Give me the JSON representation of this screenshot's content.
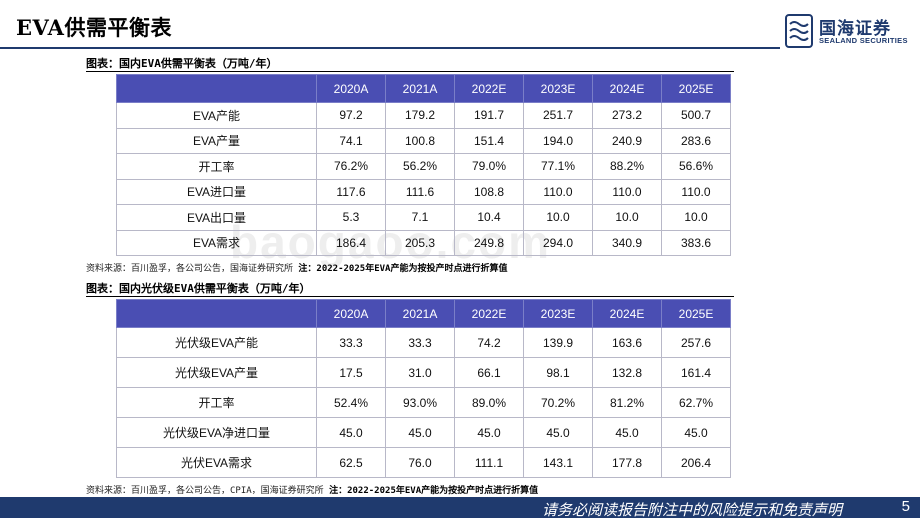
{
  "header": {
    "title": "EVA供需平衡表",
    "logo_cn": "国海证券",
    "logo_en": "SEALAND SECURITIES"
  },
  "watermark": "baogaoo.com",
  "table1": {
    "caption": "图表：国内EVA供需平衡表（万吨/年）",
    "headers": [
      "",
      "2020A",
      "2021A",
      "2022E",
      "2023E",
      "2024E",
      "2025E"
    ],
    "rows": [
      [
        "EVA产能",
        "97.2",
        "179.2",
        "191.7",
        "251.7",
        "273.2",
        "500.7"
      ],
      [
        "EVA产量",
        "74.1",
        "100.8",
        "151.4",
        "194.0",
        "240.9",
        "283.6"
      ],
      [
        "开工率",
        "76.2%",
        "56.2%",
        "79.0%",
        "77.1%",
        "88.2%",
        "56.6%"
      ],
      [
        "EVA进口量",
        "117.6",
        "111.6",
        "108.8",
        "110.0",
        "110.0",
        "110.0"
      ],
      [
        "EVA出口量",
        "5.3",
        "7.1",
        "10.4",
        "10.0",
        "10.0",
        "10.0"
      ],
      [
        "EVA需求",
        "186.4",
        "205.3",
        "249.8",
        "294.0",
        "340.9",
        "383.6"
      ]
    ],
    "source": "资料来源：百川盈孚，各公司公告，国海证券研究所 ",
    "note": "注：2022-2025年EVA产能为按投产时点进行折算值"
  },
  "table2": {
    "caption": "图表：国内光伏级EVA供需平衡表（万吨/年）",
    "headers": [
      "",
      "2020A",
      "2021A",
      "2022E",
      "2023E",
      "2024E",
      "2025E"
    ],
    "rows": [
      [
        "光伏级EVA产能",
        "33.3",
        "33.3",
        "74.2",
        "139.9",
        "163.6",
        "257.6"
      ],
      [
        "光伏级EVA产量",
        "17.5",
        "31.0",
        "66.1",
        "98.1",
        "132.8",
        "161.4"
      ],
      [
        "开工率",
        "52.4%",
        "93.0%",
        "89.0%",
        "70.2%",
        "81.2%",
        "62.7%"
      ],
      [
        "光伏级EVA净进口量",
        "45.0",
        "45.0",
        "45.0",
        "45.0",
        "45.0",
        "45.0"
      ],
      [
        "光伏EVA需求",
        "62.5",
        "76.0",
        "111.1",
        "143.1",
        "177.8",
        "206.4"
      ]
    ],
    "source": "资料来源：百川盈孚，各公司公告，CPIA，国海证券研究所 ",
    "note": "注：2022-2025年EVA产能为按投产时点进行折算值"
  },
  "footer": {
    "disclaimer": "请务必阅读报告附注中的风险提示和免责声明",
    "page_number": "5"
  },
  "colors": {
    "brand": "#1f3a6e",
    "table_header": "#4a4eb3"
  }
}
